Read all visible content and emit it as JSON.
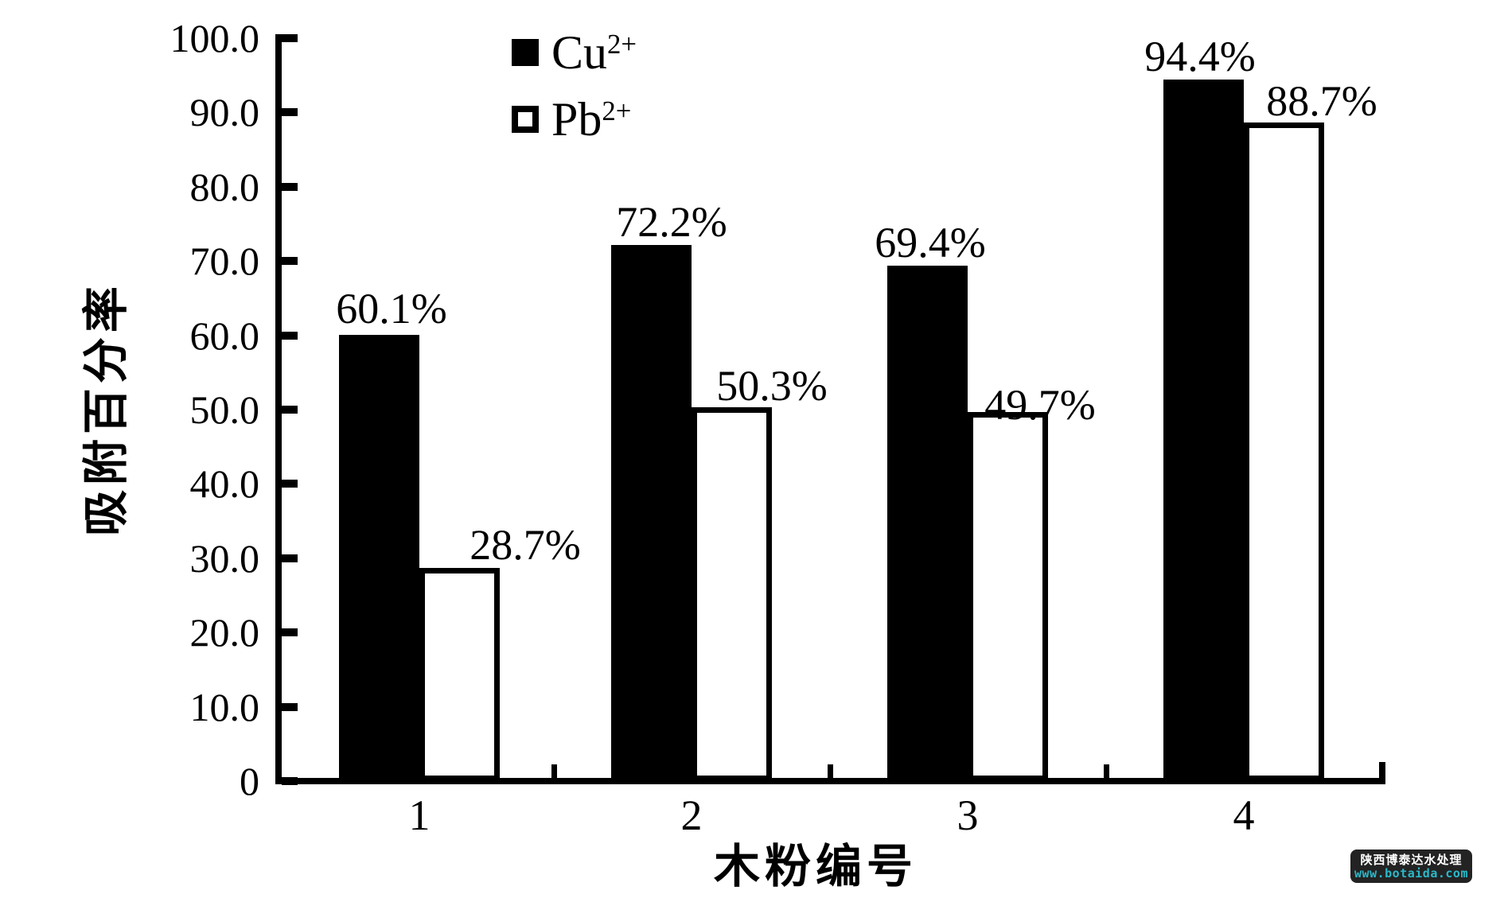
{
  "chart_data": {
    "type": "bar",
    "title": "",
    "categories": [
      "1",
      "2",
      "3",
      "4"
    ],
    "series": [
      {
        "name": "Cu2+",
        "base": "Cu",
        "sup": "2+",
        "swatch_style": "solid",
        "color": "#000000",
        "values": [
          60.1,
          72.2,
          69.4,
          94.4
        ],
        "data_labels": [
          "60.1%",
          "72.2%",
          "69.4%",
          "94.4%"
        ]
      },
      {
        "name": "Pb2+",
        "base": "Pb",
        "sup": "2+",
        "swatch_style": "hollow",
        "color": "#000000",
        "values": [
          28.7,
          50.3,
          49.7,
          88.7
        ],
        "data_labels": [
          "28.7%",
          "50.3%",
          "49.7%",
          "88.7%"
        ]
      }
    ],
    "xlabel": "木粉编号",
    "ylabel": "吸附百分率",
    "ylim": [
      0,
      100
    ],
    "ytick_labels": [
      "100.0",
      "90.0",
      "80.0",
      "70.0",
      "60.0",
      "50.0",
      "40.0",
      "30.0",
      "20.0",
      "10.0",
      "0"
    ],
    "grid": false,
    "legend": {
      "position": "top-center",
      "entries": [
        "Cu2+",
        "Pb2+"
      ]
    }
  },
  "watermark": {
    "line1": "陕西博泰达水处理",
    "line2": "www.botaida.com",
    "bg_color": "#232323",
    "line1_color": "#ffffff",
    "line2_color": "#2ab9c9"
  }
}
